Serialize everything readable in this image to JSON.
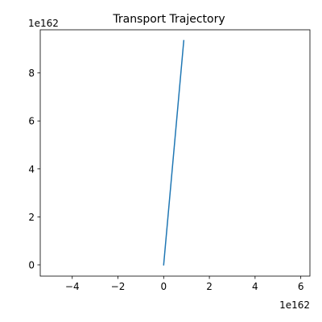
{
  "chart_data": {
    "type": "line",
    "title": "Transport Trajectory",
    "xlabel": "",
    "ylabel": "",
    "x_offset_label": "1e162",
    "y_offset_label": "1e162",
    "xlim": [
      -5.4,
      6.4
    ],
    "ylim": [
      -0.47,
      9.8
    ],
    "x_ticks": [
      -4,
      -2,
      0,
      2,
      4,
      6
    ],
    "x_tick_labels": [
      "−4",
      "−2",
      "0",
      "2",
      "4",
      "6"
    ],
    "y_ticks": [
      0,
      2,
      4,
      6,
      8
    ],
    "y_tick_labels": [
      "0",
      "2",
      "4",
      "6",
      "8"
    ],
    "grid": false,
    "series": [
      {
        "color": "#1f77b4",
        "x": [
          0,
          0.88
        ],
        "y": [
          0,
          9.35
        ]
      }
    ]
  }
}
